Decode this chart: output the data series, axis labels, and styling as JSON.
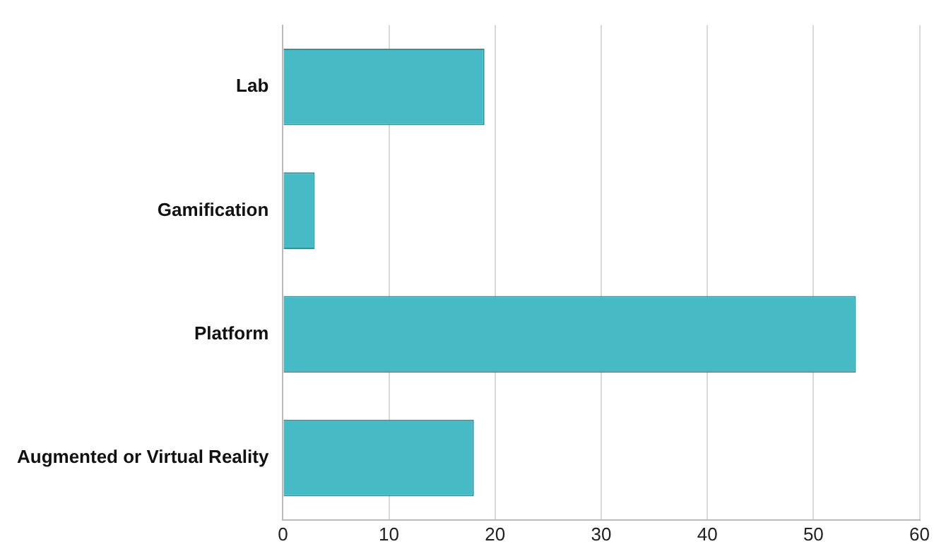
{
  "chart_data": {
    "type": "bar",
    "orientation": "horizontal",
    "categories": [
      "Lab",
      "Gamification",
      "Platform",
      "Augmented or Virtual Reality"
    ],
    "values": [
      19,
      3,
      54,
      18
    ],
    "color": "#46bbc6",
    "xlim": [
      0,
      60
    ],
    "xticks": [
      0,
      10,
      20,
      30,
      40,
      50,
      60
    ],
    "grid": "x",
    "legend": false
  }
}
